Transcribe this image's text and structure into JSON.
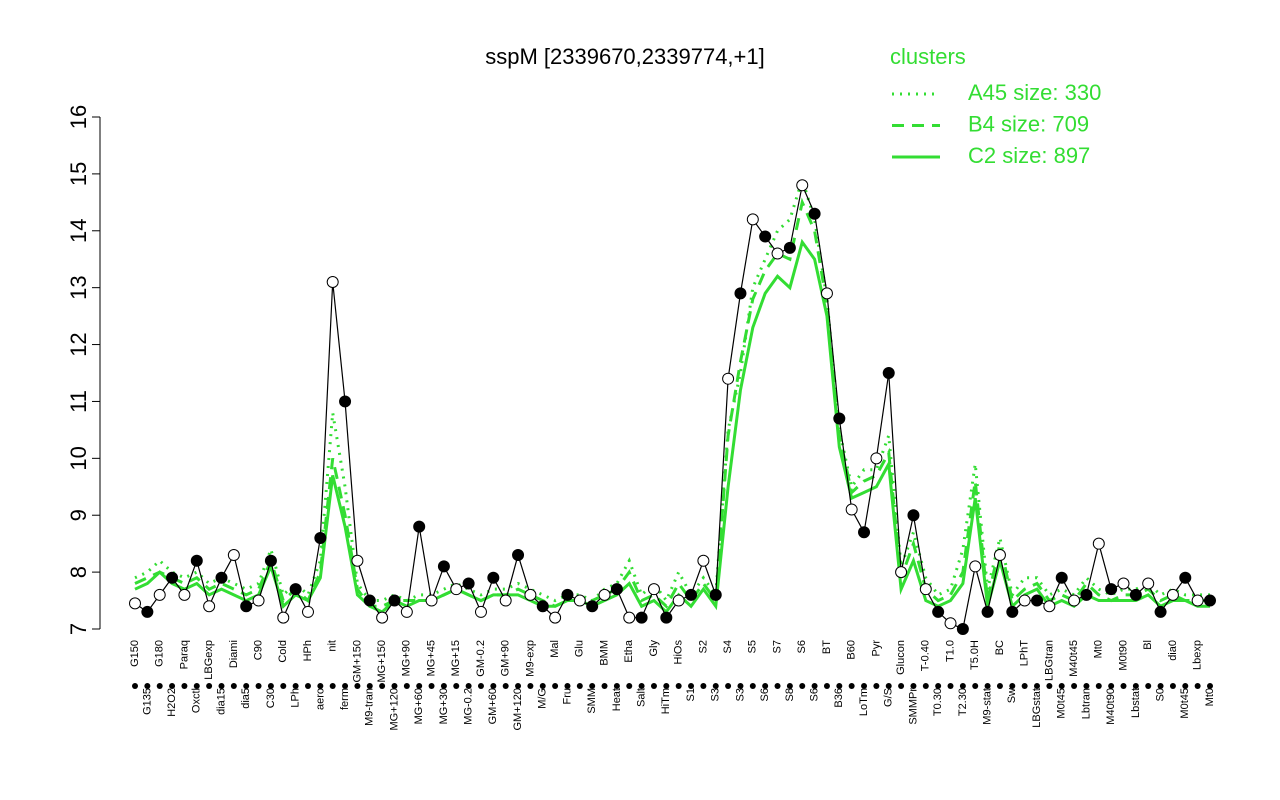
{
  "chart_data": {
    "type": "line",
    "title": "sspM [2339670,2339774,+1]",
    "legend_title": "clusters",
    "categories": [
      "G150",
      "G135",
      "G180",
      "H2O2",
      "Paraq",
      "Oxctl",
      "LBGexp",
      "dia15",
      "Diami",
      "dia5",
      "C90",
      "C30",
      "Cold",
      "LPh",
      "HPh",
      "aero",
      "nit",
      "ferm",
      "GM+150",
      "M9-tran",
      "MG+150",
      "MG+120",
      "MG+90",
      "MG+60",
      "MG+45",
      "MG+30",
      "MG+15",
      "MG-0.2",
      "GM-0.2",
      "GM+60",
      "GM+90",
      "GM+120",
      "M9-exp",
      "M/G",
      "Mal",
      "Fru",
      "Glu",
      "SMM",
      "BMM",
      "Heat",
      "Etha",
      "Salt",
      "Gly",
      "HiTm",
      "HiOs",
      "S1",
      "S2",
      "S3",
      "S4",
      "S3",
      "S5",
      "S6",
      "S7",
      "S8",
      "S6",
      "S6",
      "BT",
      "B36",
      "B60",
      "LoTm",
      "Pyr",
      "G/S",
      "Glucon",
      "SMMPr",
      "T-0.40",
      "T0.30",
      "T1.0",
      "T2.30",
      "T5.0H",
      "M9-stat",
      "BC",
      "Sw",
      "LPhT",
      "LBGstat",
      "LBGtran",
      "M0t45",
      "M40t45",
      "Lbtran",
      "Mt0",
      "M40t90",
      "M0t90",
      "Lbstat",
      "Bl",
      "S0",
      "dia0",
      "M0t45",
      "Lbexp",
      "Mt0"
    ],
    "values": [
      7.45,
      7.3,
      7.6,
      7.9,
      7.6,
      8.2,
      7.4,
      7.9,
      8.3,
      7.4,
      7.5,
      8.2,
      7.2,
      7.7,
      7.3,
      8.6,
      13.1,
      11.0,
      8.2,
      7.5,
      7.2,
      7.5,
      7.3,
      8.8,
      7.5,
      8.1,
      7.7,
      7.8,
      7.3,
      7.9,
      7.5,
      8.3,
      7.6,
      7.4,
      7.2,
      7.6,
      7.5,
      7.4,
      7.6,
      7.7,
      7.2,
      7.2,
      7.7,
      7.2,
      7.5,
      7.6,
      8.2,
      7.6,
      11.4,
      12.9,
      14.2,
      13.9,
      13.6,
      13.7,
      14.8,
      14.3,
      12.9,
      10.7,
      9.1,
      8.7,
      10.0,
      11.5,
      8.0,
      9.0,
      7.7,
      7.3,
      7.1,
      7.0,
      8.1,
      7.3,
      8.3,
      7.3,
      7.5,
      7.5,
      7.4,
      7.9,
      7.5,
      7.6,
      8.5,
      7.7,
      7.8,
      7.6,
      7.8,
      7.3,
      7.6,
      7.9,
      7.5,
      7.5
    ],
    "color": "#000000",
    "series": [
      {
        "name": "A45 size: 330",
        "color": "#33dd33",
        "linestyle": "dotted",
        "values": [
          7.9,
          8.0,
          8.2,
          8.0,
          7.9,
          8.0,
          7.8,
          7.9,
          7.8,
          7.7,
          7.8,
          8.4,
          7.6,
          7.8,
          7.6,
          8.2,
          10.8,
          9.5,
          7.8,
          7.5,
          7.5,
          7.6,
          7.5,
          7.6,
          7.6,
          7.7,
          7.8,
          7.7,
          7.6,
          7.7,
          7.7,
          7.8,
          7.7,
          7.6,
          7.5,
          7.6,
          7.6,
          7.5,
          7.7,
          7.8,
          8.2,
          7.6,
          7.8,
          7.5,
          8.0,
          7.6,
          7.9,
          7.6,
          10.5,
          11.5,
          13.0,
          13.5,
          14.0,
          14.2,
          14.9,
          14.2,
          12.8,
          10.5,
          9.5,
          9.8,
          9.8,
          10.4,
          8.1,
          8.7,
          7.9,
          7.6,
          7.7,
          8.4,
          9.9,
          7.7,
          8.6,
          7.6,
          7.9,
          7.9,
          7.6,
          7.7,
          7.6,
          7.9,
          7.7,
          7.6,
          7.7,
          7.7,
          7.8,
          7.6,
          7.7,
          7.6,
          7.6,
          7.6
        ]
      },
      {
        "name": "B4 size: 709",
        "color": "#33dd33",
        "linestyle": "dashed",
        "values": [
          7.8,
          7.9,
          8.0,
          7.9,
          7.8,
          7.9,
          7.7,
          7.8,
          7.7,
          7.6,
          7.7,
          8.2,
          7.5,
          7.7,
          7.5,
          8.0,
          10.0,
          9.0,
          7.7,
          7.4,
          7.4,
          7.5,
          7.5,
          7.5,
          7.5,
          7.6,
          7.7,
          7.6,
          7.5,
          7.6,
          7.6,
          7.7,
          7.6,
          7.5,
          7.4,
          7.5,
          7.5,
          7.5,
          7.6,
          7.7,
          8.0,
          7.5,
          7.6,
          7.4,
          7.8,
          7.5,
          7.8,
          7.5,
          10.4,
          11.7,
          12.8,
          13.3,
          13.6,
          13.5,
          14.5,
          14.0,
          12.7,
          10.4,
          9.4,
          9.6,
          9.7,
          10.1,
          7.9,
          8.5,
          7.7,
          7.5,
          7.6,
          8.0,
          9.6,
          7.5,
          8.5,
          7.5,
          7.7,
          7.8,
          7.5,
          7.6,
          7.5,
          7.8,
          7.6,
          7.5,
          7.6,
          7.6,
          7.7,
          7.5,
          7.6,
          7.5,
          7.5,
          7.5
        ]
      },
      {
        "name": "C2 size: 897",
        "color": "#33dd33",
        "linestyle": "solid",
        "values": [
          7.7,
          7.8,
          8.0,
          7.8,
          7.7,
          7.8,
          7.6,
          7.7,
          7.6,
          7.5,
          7.6,
          8.1,
          7.4,
          7.6,
          7.5,
          7.9,
          9.7,
          8.8,
          7.6,
          7.4,
          7.3,
          7.5,
          7.4,
          7.5,
          7.5,
          7.6,
          7.7,
          7.6,
          7.5,
          7.6,
          7.6,
          7.6,
          7.5,
          7.4,
          7.4,
          7.5,
          7.5,
          7.4,
          7.5,
          7.6,
          7.8,
          7.4,
          7.5,
          7.3,
          7.6,
          7.4,
          7.7,
          7.4,
          9.5,
          11.2,
          12.3,
          12.9,
          13.2,
          13.0,
          13.8,
          13.5,
          12.5,
          10.2,
          9.3,
          9.4,
          9.5,
          9.9,
          7.7,
          8.2,
          7.5,
          7.4,
          7.5,
          7.8,
          9.3,
          7.4,
          8.2,
          7.4,
          7.6,
          7.7,
          7.4,
          7.5,
          7.4,
          7.6,
          7.5,
          7.5,
          7.5,
          7.5,
          7.6,
          7.4,
          7.5,
          7.5,
          7.4,
          7.4
        ]
      }
    ],
    "ylim": [
      7,
      16
    ],
    "yticks": [
      7,
      8,
      9,
      10,
      11,
      12,
      13,
      14,
      15,
      16
    ]
  }
}
